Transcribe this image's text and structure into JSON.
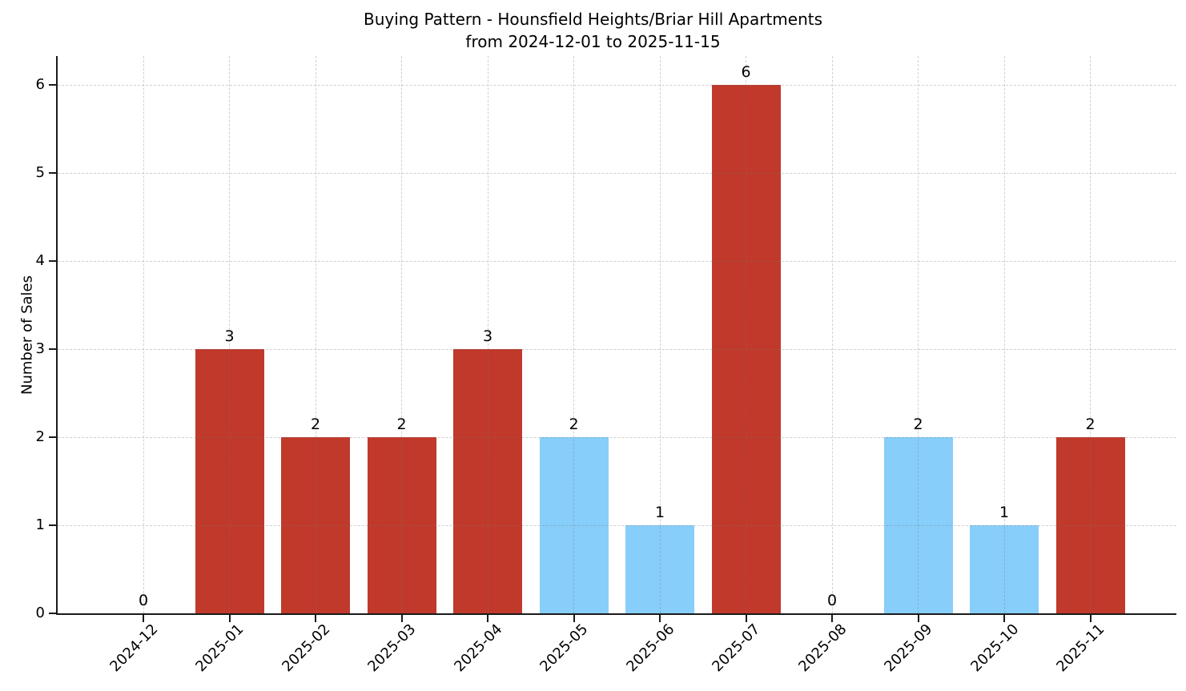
{
  "chart_data": {
    "type": "bar",
    "title": "Buying Pattern - Hounsfield Heights/Briar Hill Apartments",
    "subtitle": "from 2024-12-01 to 2025-11-15",
    "title_lines": [
      "Buying Pattern - Hounsfield Heights/Briar Hill Apartments",
      "from 2024-12-01 to 2025-11-15"
    ],
    "xlabel": "",
    "ylabel": "Number of Sales",
    "categories": [
      "2024-12",
      "2025-01",
      "2025-02",
      "2025-03",
      "2025-04",
      "2025-05",
      "2025-06",
      "2025-07",
      "2025-08",
      "2025-09",
      "2025-10",
      "2025-11"
    ],
    "values": [
      0,
      3,
      2,
      2,
      3,
      2,
      1,
      6,
      0,
      2,
      1,
      2
    ],
    "value_labels": [
      "0",
      "3",
      "2",
      "2",
      "3",
      "2",
      "1",
      "6",
      "0",
      "2",
      "1",
      "2"
    ],
    "bar_colors": [
      null,
      "#c0392b",
      "#c0392b",
      "#c0392b",
      "#c0392b",
      "#87cefa",
      "#87cefa",
      "#c0392b",
      null,
      "#87cefa",
      "#87cefa",
      "#c0392b"
    ],
    "yticks": [
      0,
      1,
      2,
      3,
      4,
      5,
      6
    ],
    "ylim": [
      0,
      6.33
    ],
    "x_tick_rotation": 45,
    "grid": {
      "visible": true,
      "style": "dashed",
      "drawn_over_bars": true
    },
    "legend_position": "none",
    "colors": {
      "red_bar": "#c0392b",
      "blue_bar": "#87cefa",
      "grid": "#d0d0d0",
      "axis": "#1a1a1a",
      "text": "#000000",
      "background": "#ffffff"
    }
  }
}
